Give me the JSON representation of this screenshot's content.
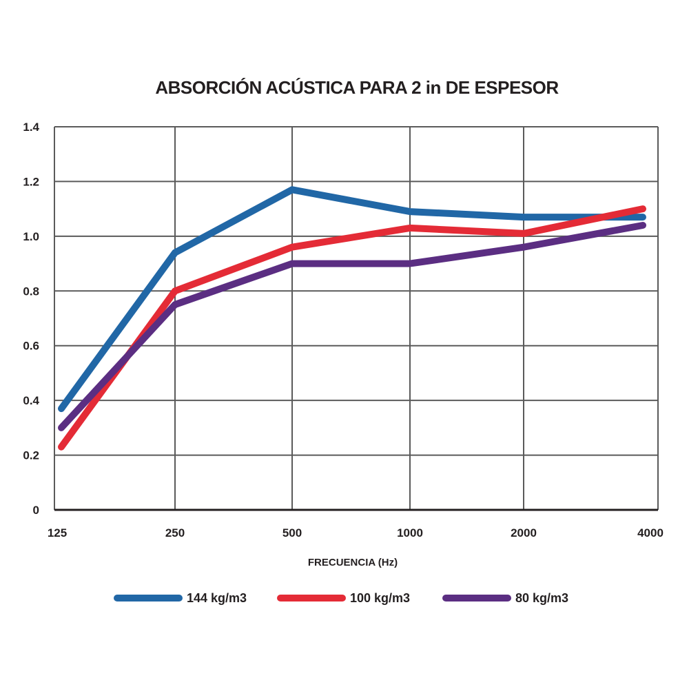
{
  "chart_data": {
    "type": "line",
    "title": "ABSORCIÓN ACÚSTICA PARA 2 in DE ESPESOR",
    "xlabel": "FRECUENCIA (Hz)",
    "ylabel": "",
    "categories": [
      "125",
      "250",
      "500",
      "1000",
      "2000",
      "4000"
    ],
    "yticks": [
      "0",
      "0.2",
      "0.4",
      "0.6",
      "0.8",
      "1.0",
      "1.2",
      "1.4"
    ],
    "ylim": [
      0,
      1.4
    ],
    "grid": true,
    "legend_position": "bottom",
    "series": [
      {
        "name": "144 kg/m3",
        "color": "#2167a6",
        "values": [
          0.37,
          0.94,
          1.17,
          1.09,
          1.07,
          1.07
        ]
      },
      {
        "name": "100 kg/m3",
        "color": "#e42b36",
        "values": [
          0.23,
          0.8,
          0.96,
          1.03,
          1.01,
          1.1
        ]
      },
      {
        "name": "80 kg/m3",
        "color": "#5b2e82",
        "values": [
          0.3,
          0.75,
          0.9,
          0.9,
          0.96,
          1.04
        ]
      }
    ]
  }
}
